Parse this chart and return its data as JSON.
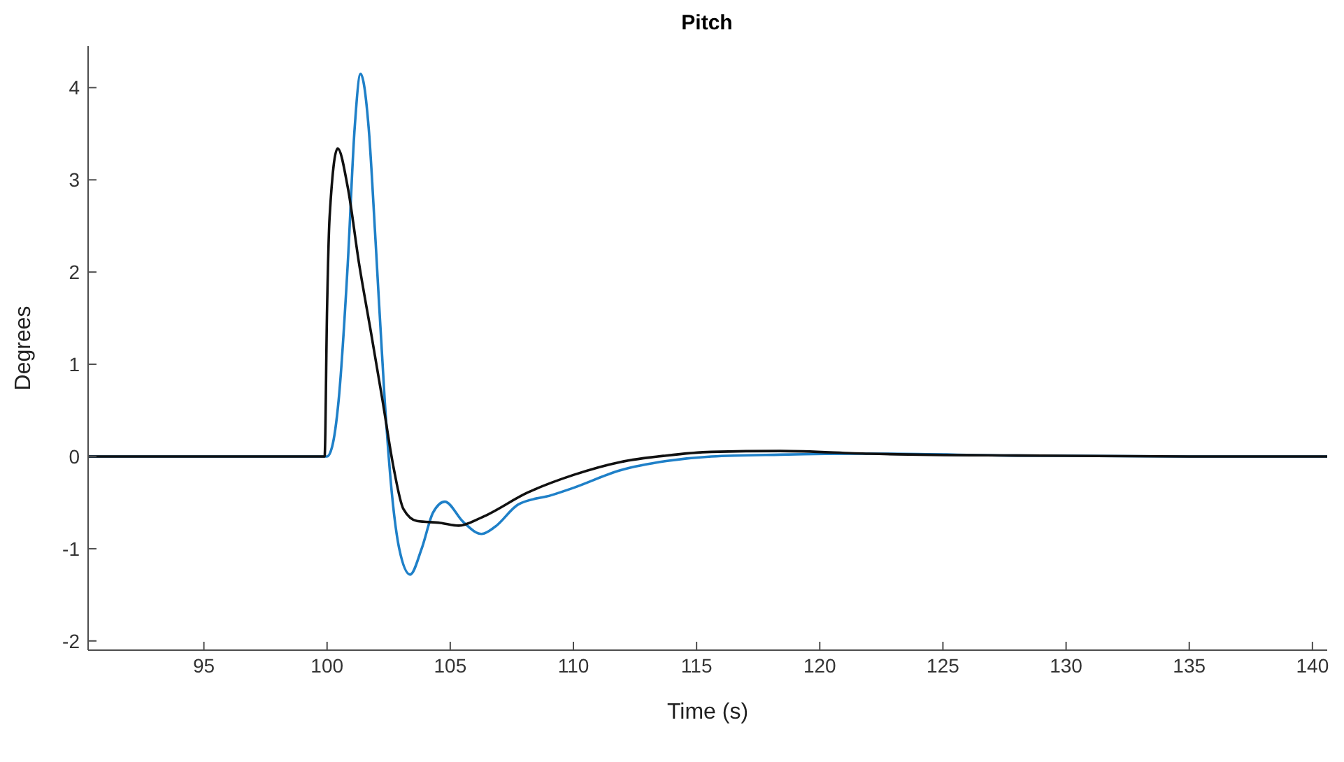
{
  "chart_data": {
    "type": "line",
    "title": "Pitch",
    "xlabel": "Time (s)",
    "ylabel": "Degrees",
    "xlim": [
      90.3,
      140.6
    ],
    "ylim": [
      -2.1,
      4.45
    ],
    "xticks": [
      95,
      100,
      105,
      110,
      115,
      120,
      125,
      130,
      135,
      140
    ],
    "yticks": [
      -2,
      -1,
      0,
      1,
      2,
      3,
      4
    ],
    "grid": false,
    "legend": false,
    "marker": "none",
    "line_style": "solid",
    "series": [
      {
        "color": "#1f80c8",
        "x": [
          90.3,
          100.0,
          100.2,
          100.47,
          100.84,
          101.12,
          101.36,
          101.69,
          101.97,
          102.34,
          102.62,
          102.93,
          103.37,
          103.84,
          104.3,
          104.78,
          105.53,
          106.27,
          106.83,
          107.76,
          109.1,
          110.0,
          111.9,
          113.76,
          115.6,
          118.4,
          122,
          128,
          135,
          140.6
        ],
        "values": [
          0,
          0,
          0.1,
          0.61,
          2.09,
          3.56,
          4.15,
          3.56,
          2.33,
          0.61,
          -0.37,
          -1.0,
          -1.28,
          -1.0,
          -0.61,
          -0.49,
          -0.71,
          -0.84,
          -0.76,
          -0.52,
          -0.42,
          -0.34,
          -0.15,
          -0.05,
          0.0,
          0.02,
          0.03,
          0.01,
          0,
          0
        ]
      },
      {
        "color": "#111111",
        "x": [
          90.3,
          99.9,
          100.0,
          100.1,
          100.43,
          100.84,
          101.3,
          101.78,
          102.25,
          102.7,
          103.1,
          103.65,
          104.6,
          105.34,
          106.28,
          108.15,
          110.0,
          111.9,
          113.76,
          115.6,
          118.4,
          122,
          128,
          135,
          140.6
        ],
        "values": [
          0,
          0,
          1.6,
          2.58,
          3.34,
          2.92,
          2.09,
          1.35,
          0.61,
          -0.12,
          -0.57,
          -0.7,
          -0.72,
          -0.75,
          -0.66,
          -0.39,
          -0.2,
          -0.06,
          0.01,
          0.05,
          0.06,
          0.03,
          0.01,
          0,
          0
        ]
      }
    ]
  }
}
